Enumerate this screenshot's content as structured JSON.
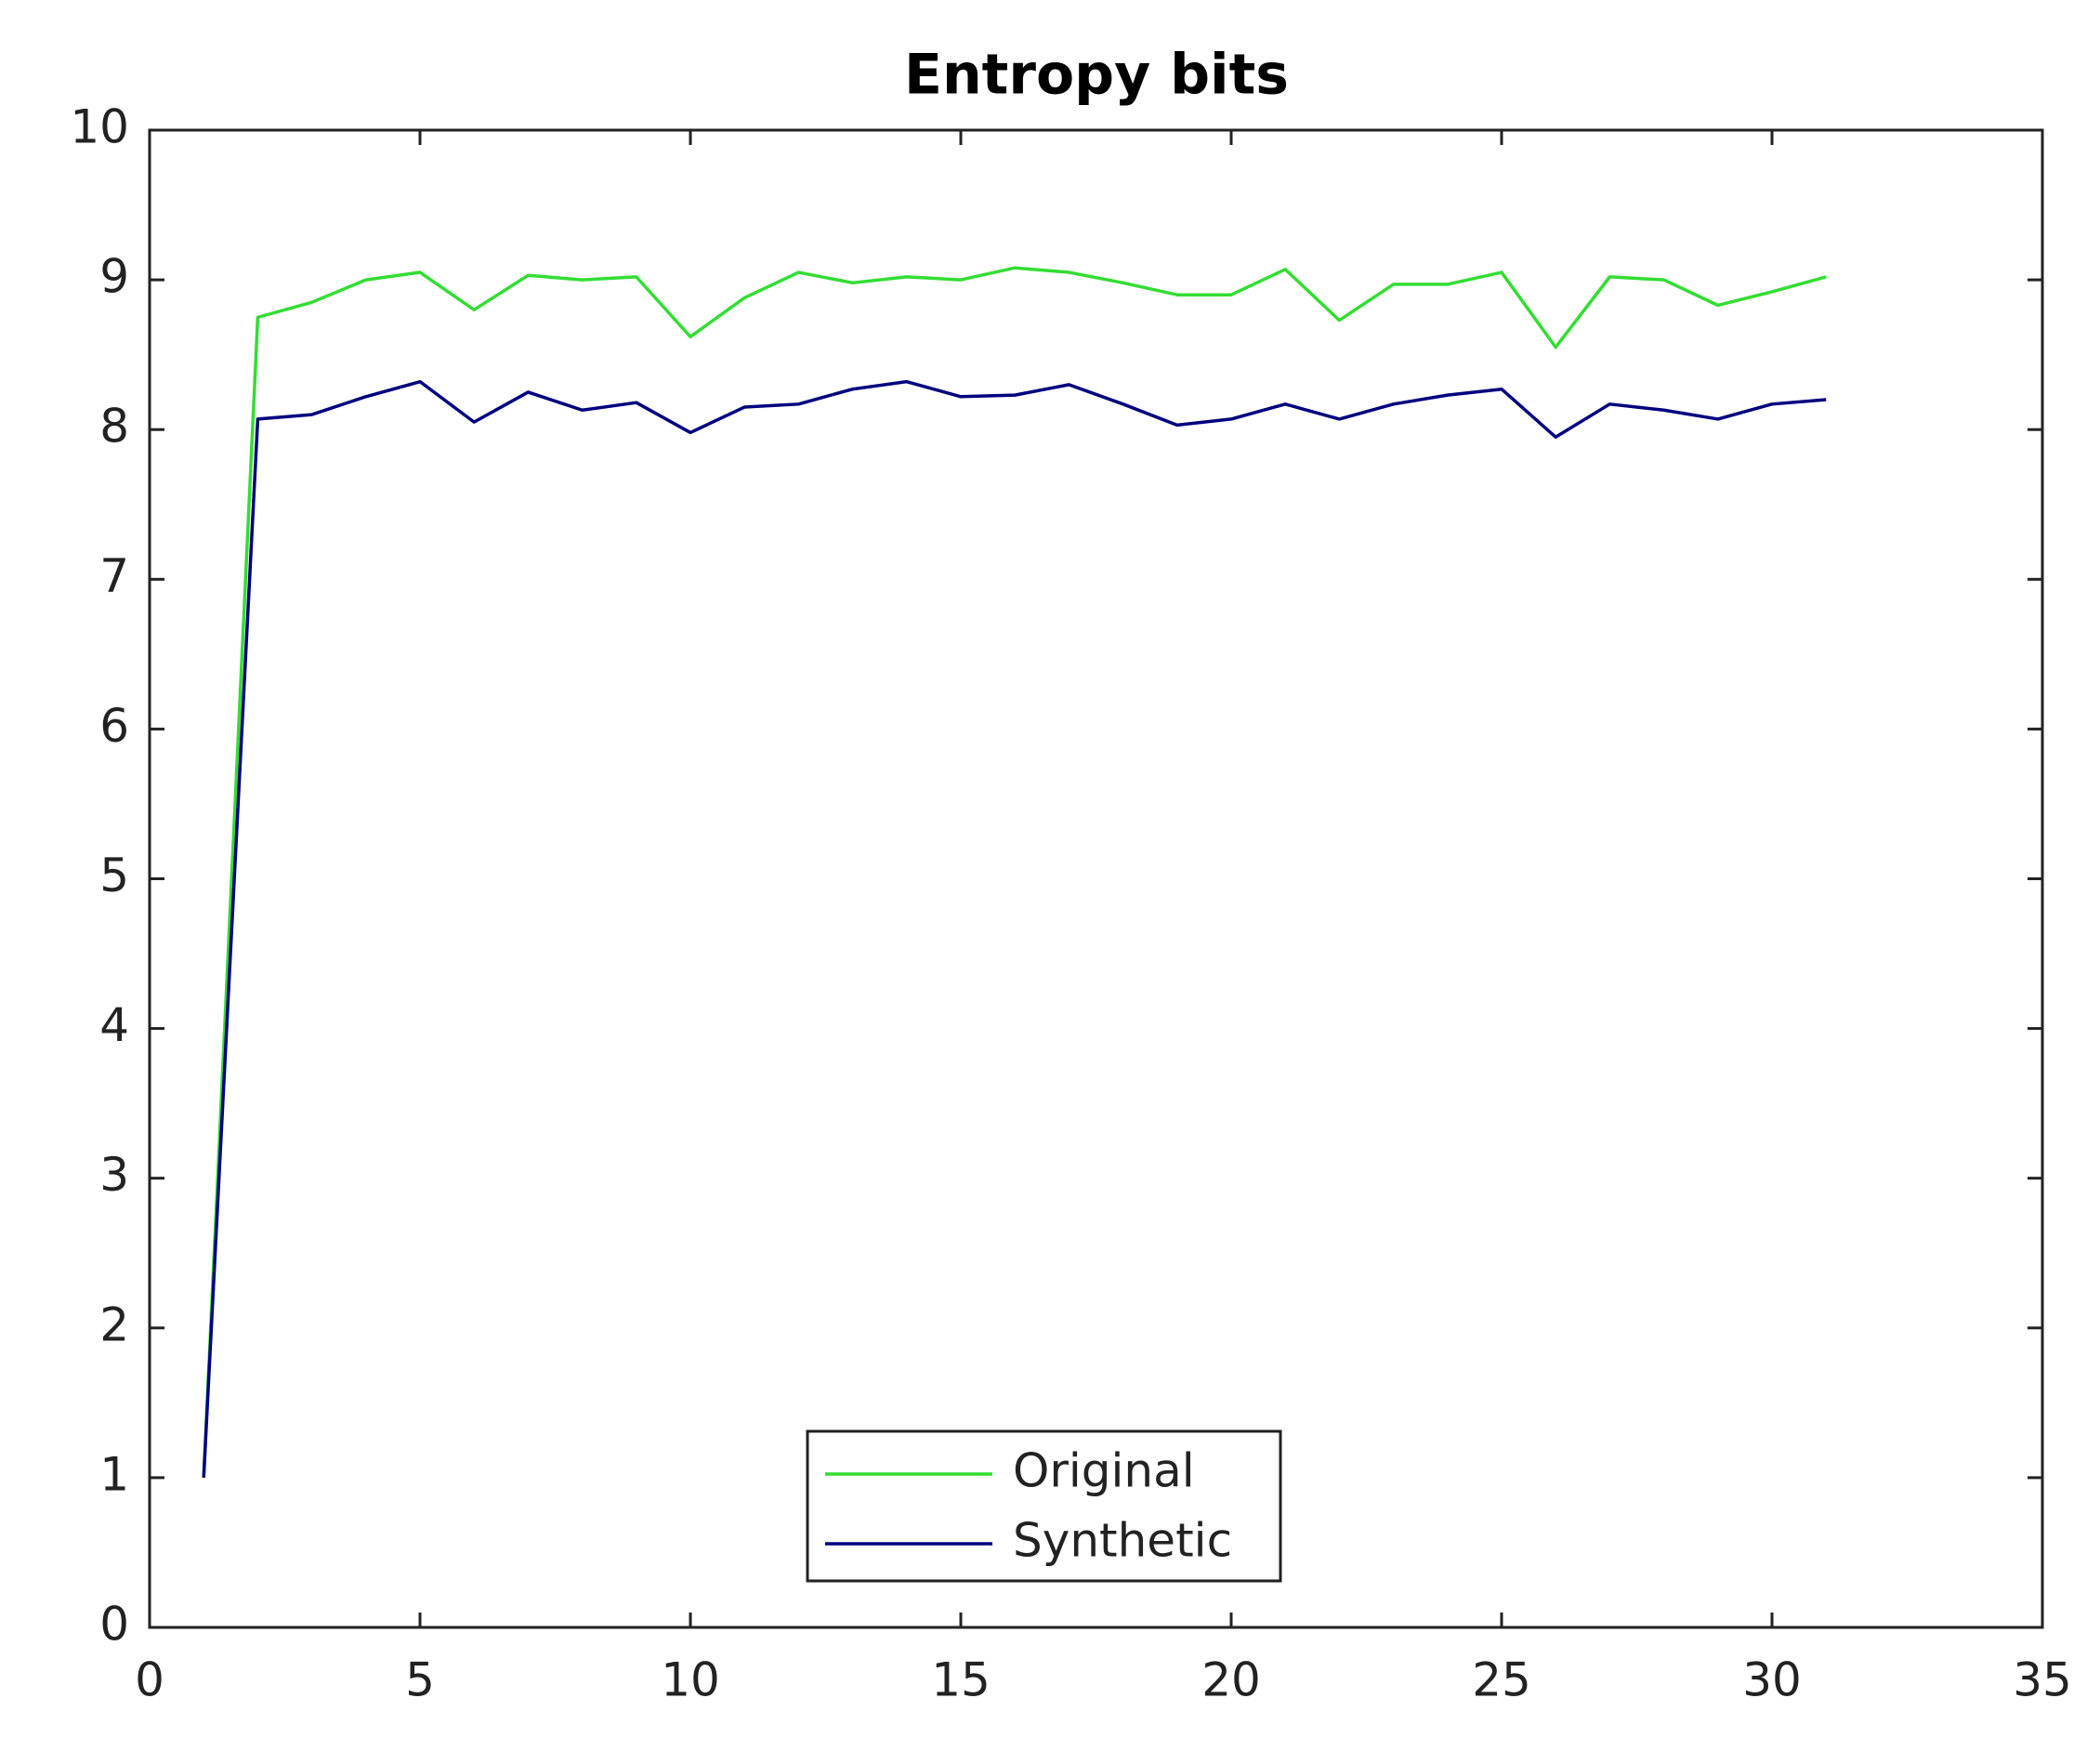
{
  "chart_data": {
    "type": "line",
    "title": "Entropy bits",
    "x": [
      1,
      2,
      3,
      4,
      5,
      6,
      7,
      8,
      9,
      10,
      11,
      12,
      13,
      14,
      15,
      16,
      17,
      18,
      19,
      20,
      21,
      22,
      23,
      24,
      25,
      26,
      27,
      28,
      29,
      30,
      31
    ],
    "series": [
      {
        "name": "Original",
        "color": "#33dd33",
        "values": [
          1.0,
          8.75,
          8.85,
          9.0,
          9.05,
          8.8,
          9.03,
          9.0,
          9.02,
          8.62,
          8.88,
          9.05,
          8.98,
          9.02,
          9.0,
          9.08,
          9.05,
          8.98,
          8.9,
          8.9,
          9.07,
          8.73,
          8.97,
          8.97,
          9.05,
          8.55,
          9.02,
          9.0,
          8.83,
          8.92,
          9.02
        ]
      },
      {
        "name": "Synthetic",
        "color": "#000080",
        "values": [
          1.0,
          8.07,
          8.1,
          8.22,
          8.32,
          8.05,
          8.25,
          8.13,
          8.18,
          7.98,
          8.15,
          8.17,
          8.27,
          8.32,
          8.22,
          8.23,
          8.3,
          8.17,
          8.03,
          8.07,
          8.17,
          8.07,
          8.17,
          8.23,
          8.27,
          7.95,
          8.17,
          8.13,
          8.07,
          8.17,
          8.2
        ]
      }
    ],
    "xlim": [
      0,
      35
    ],
    "xticks": [
      0,
      5,
      10,
      15,
      20,
      25,
      30,
      35
    ],
    "ylim": [
      0,
      10
    ],
    "yticks": [
      0,
      1,
      2,
      3,
      4,
      5,
      6,
      7,
      8,
      9,
      10
    ],
    "grid": false,
    "legend": "south"
  }
}
